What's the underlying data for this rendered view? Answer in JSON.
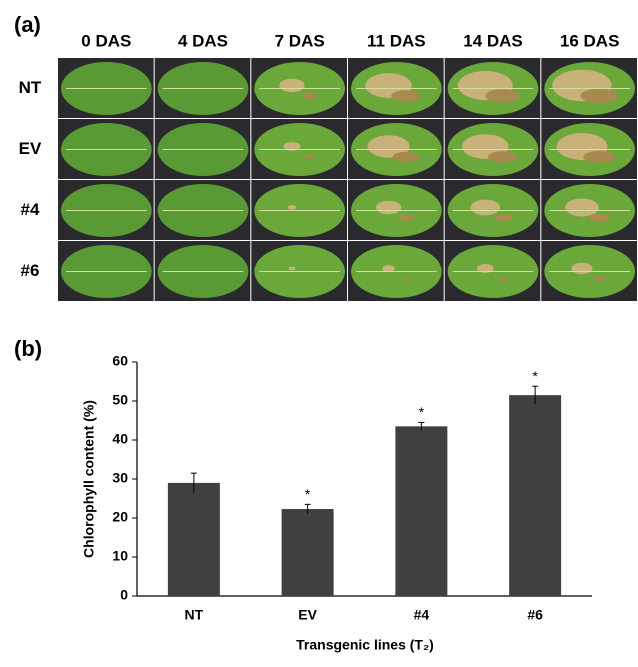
{
  "panel_a": {
    "label": "(a)",
    "columns": [
      "0 DAS",
      "4 DAS",
      "7 DAS",
      "11 DAS",
      "14 DAS",
      "16 DAS"
    ],
    "rows": [
      "NT",
      "EV",
      "#4",
      "#6"
    ]
  },
  "chart_data": {
    "type": "bar",
    "panel_label": "(b)",
    "categories": [
      "NT",
      "EV",
      "#4",
      "#6"
    ],
    "values": [
      29,
      22.3,
      43.5,
      51.5
    ],
    "errors": [
      2.5,
      1.2,
      1,
      2.3
    ],
    "significance": [
      null,
      "*",
      "*",
      "*"
    ],
    "color": "#404040",
    "y_label": "Chlorophyll content (%)",
    "x_label": "Transgenic lines (T₂)",
    "ylim": [
      0,
      60
    ],
    "yticks": [
      0,
      10,
      20,
      30,
      40,
      50,
      60
    ]
  }
}
